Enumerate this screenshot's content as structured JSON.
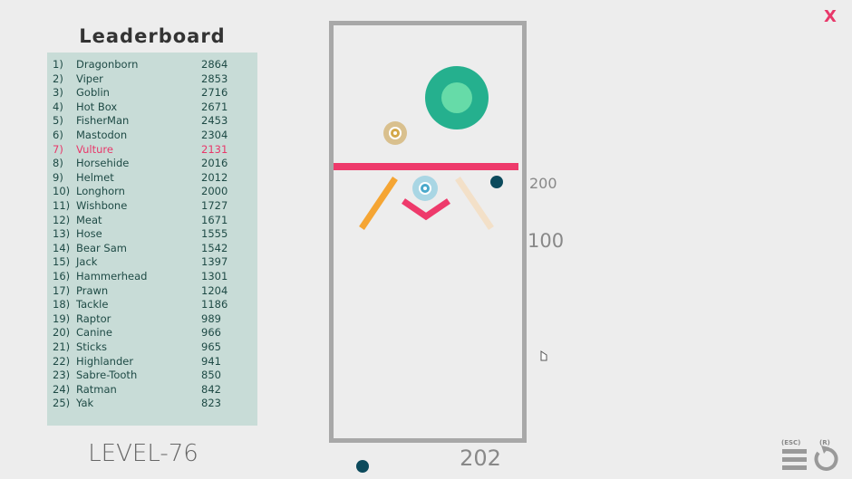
{
  "leaderboard": {
    "title": "Leaderboard",
    "highlight_color": "#e8386a",
    "entries": [
      {
        "rank": "1)",
        "name": "Dragonborn",
        "score": "2864"
      },
      {
        "rank": "2)",
        "name": "Viper",
        "score": "2853"
      },
      {
        "rank": "3)",
        "name": "Goblin",
        "score": "2716"
      },
      {
        "rank": "4)",
        "name": "Hot Box",
        "score": "2671"
      },
      {
        "rank": "5)",
        "name": "FisherMan",
        "score": "2453"
      },
      {
        "rank": "6)",
        "name": "Mastodon",
        "score": "2304"
      },
      {
        "rank": "7)",
        "name": "Vulture",
        "score": "2131",
        "highlight": true
      },
      {
        "rank": "8)",
        "name": "Horsehide",
        "score": "2016"
      },
      {
        "rank": "9)",
        "name": "Helmet",
        "score": "2012"
      },
      {
        "rank": "10)",
        "name": "Longhorn",
        "score": "2000"
      },
      {
        "rank": "11)",
        "name": "Wishbone",
        "score": "1727"
      },
      {
        "rank": "12)",
        "name": "Meat",
        "score": "1671"
      },
      {
        "rank": "13)",
        "name": "Hose",
        "score": "1555"
      },
      {
        "rank": "14)",
        "name": "Bear Sam",
        "score": "1542"
      },
      {
        "rank": "15)",
        "name": "Jack",
        "score": "1397"
      },
      {
        "rank": "16)",
        "name": "Hammerhead",
        "score": "1301"
      },
      {
        "rank": "17)",
        "name": "Prawn",
        "score": "1204"
      },
      {
        "rank": "18)",
        "name": "Tackle",
        "score": "1186"
      },
      {
        "rank": "19)",
        "name": "Raptor",
        "score": "989"
      },
      {
        "rank": "20)",
        "name": "Canine",
        "score": "966"
      },
      {
        "rank": "21)",
        "name": "Sticks",
        "score": "965"
      },
      {
        "rank": "22)",
        "name": "Highlander",
        "score": "941"
      },
      {
        "rank": "23)",
        "name": "Sabre-Tooth",
        "score": "850"
      },
      {
        "rank": "24)",
        "name": "Ratman",
        "score": "842"
      },
      {
        "rank": "25)",
        "name": "Yak",
        "score": "823"
      }
    ]
  },
  "level": "LEVEL-76",
  "score": "202",
  "markers": {
    "m200": "200",
    "m100": "100"
  },
  "controls": {
    "menu_key": "(ESC)",
    "restart_key": "(R)",
    "close": "X"
  }
}
